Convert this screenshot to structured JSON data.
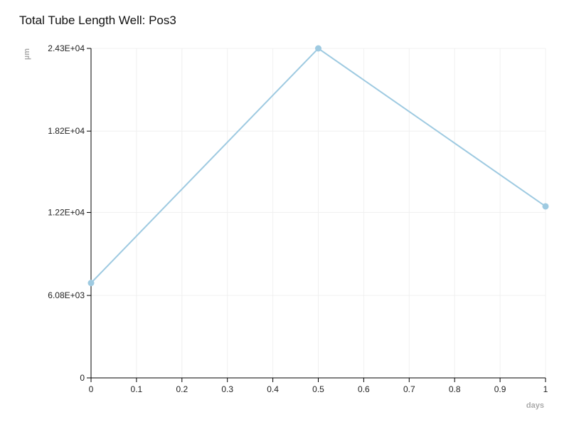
{
  "chart_data": {
    "type": "line",
    "title": "Total Tube Length Well: Pos3",
    "xlabel": "days",
    "ylabel": "µm",
    "xlim": [
      0,
      1
    ],
    "ylim": [
      0,
      24300
    ],
    "x_ticks": [
      0,
      0.1,
      0.2,
      0.3,
      0.4,
      0.5,
      0.6,
      0.7,
      0.8,
      0.9,
      1
    ],
    "x_tick_labels": [
      "0",
      "0.1",
      "0.2",
      "0.3",
      "0.4",
      "0.5",
      "0.6",
      "0.7",
      "0.8",
      "0.9",
      "1"
    ],
    "y_ticks": [
      0,
      6080,
      12200,
      18200,
      24300
    ],
    "y_tick_labels": [
      "0",
      "6.08E+03",
      "1.22E+04",
      "1.82E+04",
      "2.43E+04"
    ],
    "grid": true,
    "series": [
      {
        "x": [
          0,
          0.5,
          1
        ],
        "values": [
          7000,
          24300,
          12650
        ],
        "color": "#9ecae1"
      }
    ]
  }
}
